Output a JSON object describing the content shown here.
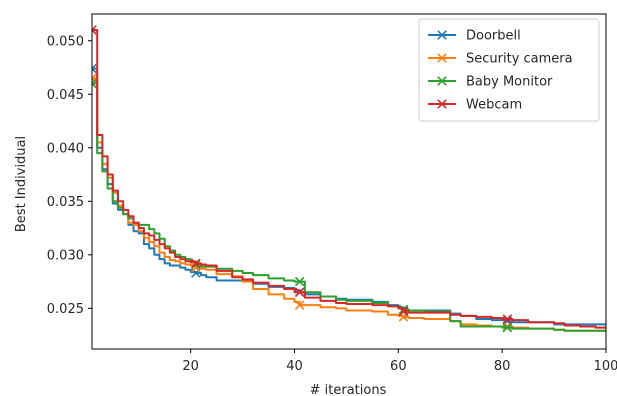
{
  "chart_data": {
    "type": "line",
    "title": "",
    "xlabel": "# iterations",
    "ylabel": "Best Individual",
    "xlim": [
      1,
      100
    ],
    "ylim": [
      0.0212,
      0.0525
    ],
    "xticks": [
      "20",
      "40",
      "60",
      "80",
      "100"
    ],
    "xtick_values": [
      20,
      40,
      60,
      80,
      100
    ],
    "yticks": [
      "0.025",
      "0.030",
      "0.035",
      "0.040",
      "0.045",
      "0.050"
    ],
    "ytick_values": [
      0.025,
      0.03,
      0.035,
      0.04,
      0.045,
      0.05
    ],
    "grid": false,
    "legend_position": "top-right",
    "marker_every": 20,
    "series": [
      {
        "name": "Doorbell",
        "color": "#1f77b4",
        "x": [
          1,
          2,
          3,
          4,
          5,
          6,
          7,
          8,
          9,
          10,
          11,
          12,
          13,
          14,
          15,
          16,
          17,
          18,
          19,
          20,
          21,
          22,
          23,
          25,
          28,
          30,
          32,
          35,
          38,
          40,
          41,
          42,
          45,
          48,
          50,
          55,
          58,
          60,
          61,
          62,
          65,
          70,
          72,
          75,
          78,
          80,
          81,
          82,
          85,
          90,
          92,
          95,
          98,
          100
        ],
        "y": [
          0.0474,
          0.04,
          0.038,
          0.0366,
          0.0348,
          0.0342,
          0.0338,
          0.0328,
          0.0322,
          0.032,
          0.031,
          0.0306,
          0.03,
          0.0296,
          0.0292,
          0.029,
          0.029,
          0.0288,
          0.0286,
          0.0284,
          0.0283,
          0.0281,
          0.0279,
          0.0276,
          0.0276,
          0.0276,
          0.0273,
          0.027,
          0.0269,
          0.0267,
          0.0265,
          0.0263,
          0.0261,
          0.0259,
          0.0258,
          0.0256,
          0.0253,
          0.0251,
          0.0248,
          0.0248,
          0.0248,
          0.0245,
          0.0243,
          0.024,
          0.0239,
          0.0239,
          0.0238,
          0.0237,
          0.0237,
          0.0235,
          0.0235,
          0.0235,
          0.0235,
          0.0235
        ]
      },
      {
        "name": "Security camera",
        "color": "#ff7f0e",
        "x": [
          1,
          2,
          3,
          4,
          5,
          6,
          7,
          8,
          9,
          10,
          11,
          12,
          13,
          14,
          15,
          16,
          17,
          18,
          19,
          20,
          21,
          22,
          23,
          25,
          28,
          30,
          32,
          35,
          38,
          40,
          41,
          42,
          45,
          48,
          50,
          55,
          58,
          60,
          61,
          62,
          65,
          70,
          72,
          75,
          78,
          80,
          81,
          82,
          85,
          90,
          92,
          95,
          98,
          100
        ],
        "y": [
          0.0465,
          0.0405,
          0.0385,
          0.0372,
          0.0358,
          0.0346,
          0.0338,
          0.033,
          0.0328,
          0.0322,
          0.0316,
          0.0312,
          0.0308,
          0.0302,
          0.0298,
          0.0295,
          0.0294,
          0.0292,
          0.0291,
          0.029,
          0.0288,
          0.0287,
          0.0286,
          0.0282,
          0.028,
          0.0275,
          0.0268,
          0.0263,
          0.0259,
          0.0256,
          0.0253,
          0.0253,
          0.0251,
          0.025,
          0.0248,
          0.0247,
          0.0244,
          0.0243,
          0.0242,
          0.0241,
          0.024,
          0.0238,
          0.0235,
          0.0234,
          0.0233,
          0.0233,
          0.0233,
          0.0232,
          0.0231,
          0.023,
          0.0229,
          0.0229,
          0.0229,
          0.0229
        ]
      },
      {
        "name": "Baby Monitor",
        "color": "#2ca02c",
        "x": [
          1,
          2,
          3,
          4,
          5,
          6,
          7,
          8,
          9,
          10,
          11,
          12,
          13,
          14,
          15,
          16,
          17,
          18,
          19,
          20,
          21,
          22,
          23,
          25,
          28,
          30,
          32,
          35,
          38,
          40,
          41,
          42,
          45,
          48,
          50,
          55,
          58,
          60,
          61,
          62,
          65,
          70,
          72,
          75,
          78,
          80,
          81,
          82,
          85,
          90,
          92,
          95,
          98,
          100
        ],
        "y": [
          0.046,
          0.0395,
          0.0378,
          0.0362,
          0.035,
          0.0344,
          0.0338,
          0.0334,
          0.033,
          0.0328,
          0.0328,
          0.0324,
          0.032,
          0.0315,
          0.0308,
          0.0304,
          0.03,
          0.0298,
          0.0296,
          0.0294,
          0.0291,
          0.0289,
          0.0289,
          0.0287,
          0.0285,
          0.0283,
          0.0281,
          0.0278,
          0.0276,
          0.0275,
          0.0275,
          0.0265,
          0.0261,
          0.0258,
          0.0257,
          0.0255,
          0.0252,
          0.025,
          0.0249,
          0.0248,
          0.0247,
          0.0238,
          0.0233,
          0.0233,
          0.0233,
          0.0232,
          0.0232,
          0.0231,
          0.0231,
          0.023,
          0.0229,
          0.0229,
          0.0229,
          0.0229
        ]
      },
      {
        "name": "Webcam",
        "color": "#d62728",
        "x": [
          1,
          2,
          3,
          4,
          5,
          6,
          7,
          8,
          9,
          10,
          11,
          12,
          13,
          14,
          15,
          16,
          17,
          18,
          19,
          20,
          21,
          22,
          23,
          25,
          28,
          30,
          32,
          35,
          38,
          40,
          41,
          42,
          45,
          48,
          50,
          55,
          58,
          60,
          61,
          62,
          65,
          70,
          72,
          75,
          78,
          80,
          81,
          82,
          85,
          90,
          92,
          95,
          98,
          100
        ],
        "y": [
          0.051,
          0.0412,
          0.0392,
          0.0375,
          0.036,
          0.035,
          0.0342,
          0.0336,
          0.033,
          0.0325,
          0.032,
          0.0318,
          0.0314,
          0.031,
          0.0306,
          0.0302,
          0.0298,
          0.0296,
          0.0294,
          0.0293,
          0.0292,
          0.0291,
          0.029,
          0.0285,
          0.0279,
          0.0277,
          0.0274,
          0.0271,
          0.0268,
          0.0265,
          0.0265,
          0.026,
          0.0257,
          0.0255,
          0.0254,
          0.0253,
          0.0252,
          0.025,
          0.0247,
          0.0246,
          0.0246,
          0.0244,
          0.0243,
          0.0242,
          0.0241,
          0.024,
          0.024,
          0.0239,
          0.0237,
          0.0236,
          0.0234,
          0.0233,
          0.0232,
          0.0232
        ]
      }
    ]
  }
}
